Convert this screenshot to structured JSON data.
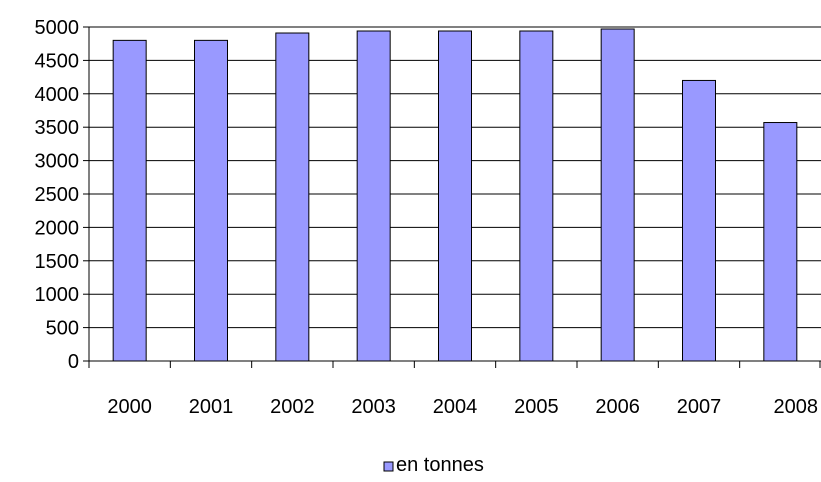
{
  "chart_data": {
    "type": "bar",
    "categories": [
      "2000",
      "2001",
      "2002",
      "2003",
      "2004",
      "2005",
      "2006",
      "2007",
      "2008"
    ],
    "series": [
      {
        "name": "en tonnes",
        "values": [
          4800,
          4800,
          4910,
          4940,
          4940,
          4940,
          4970,
          4200,
          3570
        ],
        "color": "#9999ff"
      }
    ],
    "ylim": [
      0,
      5000
    ],
    "yticks": [
      "0",
      "500",
      "1000",
      "1500",
      "2000",
      "2500",
      "3000",
      "3500",
      "4000",
      "4500",
      "5000"
    ],
    "grid": true,
    "legend": "bottom",
    "title": "",
    "xlabel": "",
    "ylabel": ""
  }
}
